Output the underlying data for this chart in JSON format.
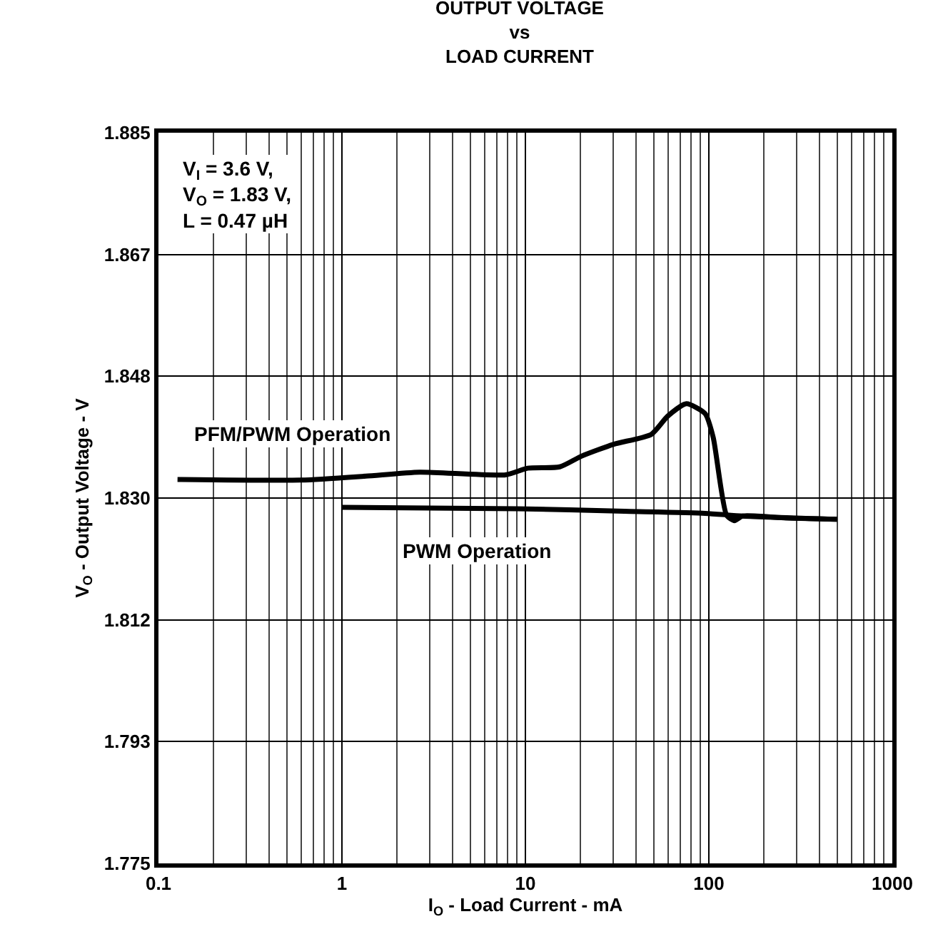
{
  "chart_data": {
    "type": "line",
    "title": "OUTPUT VOLTAGE\nvs\nLOAD CURRENT",
    "xlabel": "I$_{O}$ - Load Current - mA",
    "ylabel": "V$_{O}$ - Output Voltage - V",
    "annotations": [
      "V$_{I}$ = 3.6 V,\nV$_{O}$ = 1.83 V,\nL = 0.47 µH"
    ],
    "log": "x",
    "grid": true,
    "legend": false,
    "marker": "none",
    "line_style": "solid",
    "xlim": [
      0.1,
      1000
    ],
    "xticks": [
      0.1,
      1,
      10,
      100,
      1000
    ],
    "ylim": [
      1.775,
      1.885
    ],
    "yticks": [
      {
        "value": 1.775,
        "label": "1.775"
      },
      {
        "value": 1.79333,
        "label": "1.793"
      },
      {
        "value": 1.81167,
        "label": "1.812"
      },
      {
        "value": 1.83,
        "label": "1.830"
      },
      {
        "value": 1.84833,
        "label": "1.848"
      },
      {
        "value": 1.86667,
        "label": "1.867"
      },
      {
        "value": 1.885,
        "label": "1.885"
      }
    ],
    "series": [
      {
        "name": "PFM/PWM Operation",
        "color": "#000000",
        "x": [
          0.127,
          0.6,
          1.35,
          2.65,
          7.8,
          10.3,
          15.4,
          20.2,
          30.3,
          48.6,
          59.5,
          75.4,
          95.5,
          105.7,
          125,
          138,
          153,
          263,
          500
        ],
        "values": [
          1.8328,
          1.8327,
          1.8333,
          1.8339,
          1.8335,
          1.8345,
          1.8347,
          1.8363,
          1.8381,
          1.8396,
          1.8423,
          1.8442,
          1.8427,
          1.8391,
          1.8274,
          1.8266,
          1.8273,
          1.827,
          1.8268
        ]
      },
      {
        "name": "PWM Operation",
        "color": "#000000",
        "x": [
          1,
          9,
          34.7,
          95.5,
          153,
          500
        ],
        "values": [
          1.8286,
          1.8284,
          1.828,
          1.8277,
          1.8273,
          1.8268
        ]
      }
    ]
  }
}
